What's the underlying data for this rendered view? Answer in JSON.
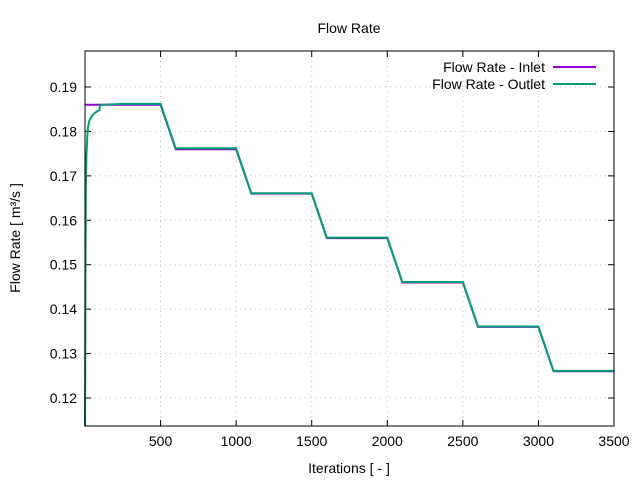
{
  "chart_data": {
    "type": "line",
    "title": "Flow Rate",
    "xlabel": "Iterations [ - ]",
    "ylabel": "Flow Rate [ m³/s ]",
    "xlim": [
      0,
      3500
    ],
    "ylim": [
      0.1137,
      0.1981
    ],
    "xticks": [
      500,
      1000,
      1500,
      2000,
      2500,
      3000,
      3500
    ],
    "xtick_labels": [
      "500",
      "1000",
      "1500",
      "2000",
      "2500",
      "3000",
      "3500"
    ],
    "yticks": [
      0.12,
      0.13,
      0.14,
      0.15,
      0.16,
      0.17,
      0.18,
      0.19
    ],
    "ytick_labels": [
      "0.12",
      "0.13",
      "0.14",
      "0.15",
      "0.16",
      "0.17",
      "0.18",
      "0.19"
    ],
    "grid": true,
    "legend_position": "top-right",
    "series": [
      {
        "name": "Flow Rate - Inlet",
        "color": "#9400d3",
        "x": [
          0,
          500,
          600,
          1000,
          1100,
          1500,
          1600,
          2000,
          2100,
          2500,
          2600,
          3000,
          3100,
          3500
        ],
        "y": [
          0.186,
          0.186,
          0.176,
          0.176,
          0.166,
          0.166,
          0.156,
          0.156,
          0.146,
          0.146,
          0.136,
          0.136,
          0.126,
          0.126
        ]
      },
      {
        "name": "Flow Rate - Outlet",
        "color": "#009e73",
        "x": [
          0,
          3,
          6,
          10,
          15,
          20,
          30,
          45,
          60,
          80,
          95,
          100,
          250,
          500,
          600,
          1000,
          1100,
          1500,
          1600,
          2000,
          2100,
          2500,
          2600,
          3000,
          3100,
          3500
        ],
        "y": [
          0.1137,
          0.15,
          0.168,
          0.175,
          0.179,
          0.181,
          0.1825,
          0.1835,
          0.184,
          0.1845,
          0.1848,
          0.186,
          0.1862,
          0.1862,
          0.1762,
          0.1762,
          0.1661,
          0.1661,
          0.1561,
          0.1561,
          0.1461,
          0.1461,
          0.1361,
          0.1361,
          0.1261,
          0.1261
        ]
      }
    ]
  }
}
